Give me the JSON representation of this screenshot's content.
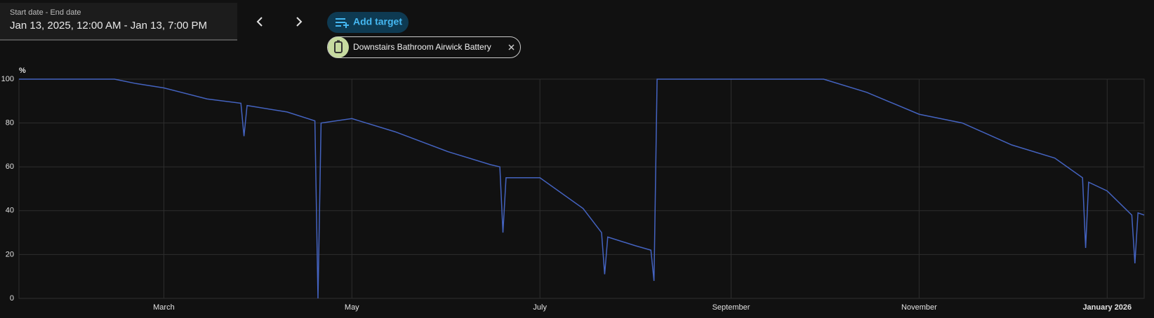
{
  "date_picker": {
    "label": "Start date - End date",
    "value": "Jan 13, 2025, 12:00 AM - Jan 13, 7:00 PM"
  },
  "add_target": "Add target",
  "chart_data": {
    "type": "line",
    "unit": "%",
    "x": [
      "2025-01-13",
      "2025-02-13",
      "2025-02-20",
      "2025-03-01",
      "2025-03-15",
      "2025-03-26",
      "2025-03-27",
      "2025-03-28",
      "2025-04-10",
      "2025-04-19",
      "2025-04-20",
      "2025-04-21",
      "2025-05-01",
      "2025-05-15",
      "2025-06-01",
      "2025-06-15",
      "2025-06-18",
      "2025-06-19",
      "2025-06-20",
      "2025-07-01",
      "2025-07-15",
      "2025-07-21",
      "2025-07-22",
      "2025-07-23",
      "2025-08-01",
      "2025-08-06",
      "2025-08-07",
      "2025-08-08",
      "2025-10-01",
      "2025-10-15",
      "2025-11-01",
      "2025-11-15",
      "2025-12-01",
      "2025-12-15",
      "2025-12-24",
      "2025-12-25",
      "2025-12-26",
      "2026-01-01",
      "2026-01-09",
      "2026-01-10",
      "2026-01-11",
      "2026-01-13"
    ],
    "series": [
      {
        "name": "Downstairs Bathroom Airwick Battery",
        "color": "#4463c0",
        "values": [
          100,
          100,
          98,
          96,
          91,
          89,
          74,
          88,
          85,
          81,
          0,
          80,
          82,
          76,
          67,
          61,
          60,
          30,
          55,
          55,
          41,
          30,
          11,
          28,
          24,
          22,
          8,
          100,
          100,
          94,
          84,
          80,
          70,
          64,
          55,
          23,
          53,
          49,
          38,
          16,
          39,
          38
        ]
      }
    ],
    "xlim": [
      "2025-01-13",
      "2026-01-13"
    ],
    "xticks": [
      {
        "value": "2025-03-01",
        "label": "March"
      },
      {
        "value": "2025-05-01",
        "label": "May"
      },
      {
        "value": "2025-07-01",
        "label": "July"
      },
      {
        "value": "2025-09-01",
        "label": "September"
      },
      {
        "value": "2025-11-01",
        "label": "November"
      },
      {
        "value": "2026-01-01",
        "label": "January 2026"
      }
    ],
    "ylim": [
      0,
      100
    ],
    "yticks": [
      0,
      20,
      40,
      60,
      80,
      100
    ],
    "grid": true
  }
}
